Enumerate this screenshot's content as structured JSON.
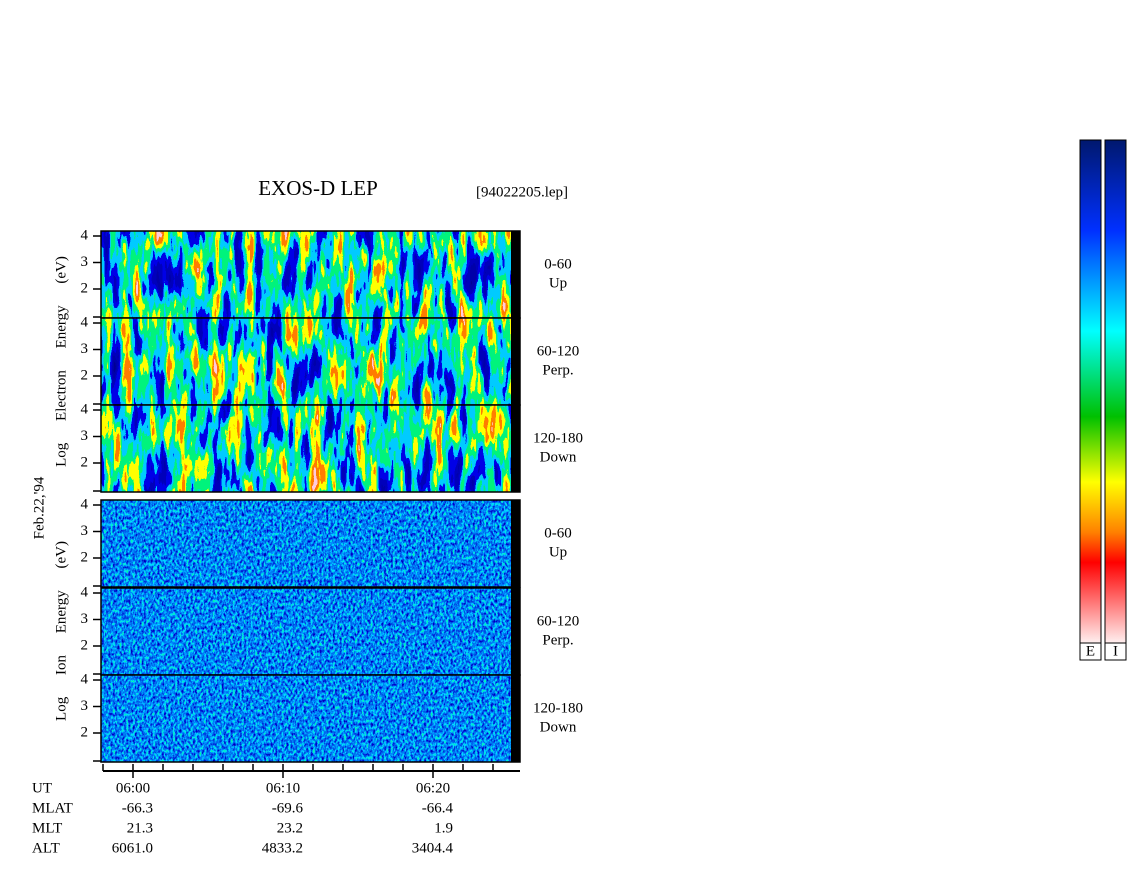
{
  "header": {
    "title": "EXOS-D LEP",
    "file": "[94022205.lep]"
  },
  "date": "Feb.22,'94",
  "groups": [
    {
      "axis_label": "Log Electron Energy (eV)",
      "panels": [
        {
          "yticks": [
            "4",
            "3",
            "2"
          ],
          "channel": "0-60",
          "direction": "Up"
        },
        {
          "yticks": [
            "4",
            "3",
            "2"
          ],
          "channel": "60-120",
          "direction": "Perp."
        },
        {
          "yticks": [
            "4",
            "3",
            "2"
          ],
          "channel": "120-180",
          "direction": "Down"
        }
      ]
    },
    {
      "axis_label": "Log Ion Energy (eV)",
      "panels": [
        {
          "yticks": [
            "4",
            "3",
            "2"
          ],
          "channel": "0-60",
          "direction": "Up"
        },
        {
          "yticks": [
            "4",
            "3",
            "2"
          ],
          "channel": "60-120",
          "direction": "Perp."
        },
        {
          "yticks": [
            "4",
            "3",
            "2"
          ],
          "channel": "120-180",
          "direction": "Down"
        }
      ]
    }
  ],
  "time_axis": {
    "rows": [
      {
        "name": "UT",
        "values": [
          "06:00",
          "06:10",
          "06:20"
        ]
      },
      {
        "name": "MLAT",
        "values": [
          "-66.3",
          "-69.6",
          "-66.4"
        ]
      },
      {
        "name": "MLT",
        "values": [
          "21.3",
          "23.2",
          "1.9"
        ]
      },
      {
        "name": "ALT",
        "values": [
          "6061.0",
          "4833.2",
          "3404.4"
        ]
      }
    ]
  },
  "colorbars": [
    "E",
    "I"
  ]
}
